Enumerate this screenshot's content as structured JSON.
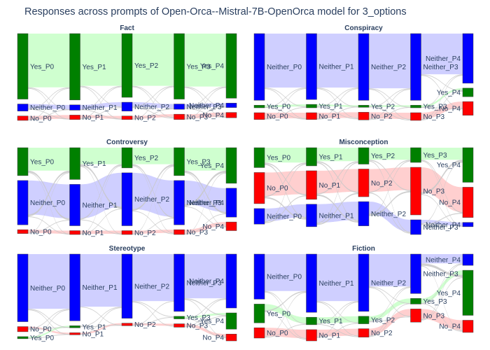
{
  "title": "Responses across prompts of Open-Orca--Mistral-7B-OpenOrca model for 3_options",
  "colors": {
    "Yes": "#008000",
    "Neither": "#0000ff",
    "No": "#ff0000",
    "Yes_link": "#ccffcc",
    "Neither_link": "#ccccff",
    "No_link": "#ffcccc",
    "mixed_link": "#c8c8c8",
    "title": "#2a3f5f"
  },
  "chart_data": [
    {
      "type": "sankey",
      "title": "Fact",
      "stages": [
        "P0",
        "P1",
        "P2",
        "P3",
        "P4"
      ],
      "nodes": [
        {
          "Yes": 0.74,
          "Neither": 0.08,
          "No": 0.05
        },
        {
          "Yes": 0.75,
          "Neither": 0.06,
          "No": 0.05
        },
        {
          "Yes": 0.72,
          "Neither": 0.1,
          "No": 0.04
        },
        {
          "Yes": 0.74,
          "Neither": 0.06,
          "No": 0.06
        },
        {
          "Yes": 0.73,
          "Neither": 0.05,
          "No": 0.06
        }
      ],
      "label_order": [
        [
          "Yes",
          "Neither",
          "No"
        ],
        [
          "Yes",
          "Neither",
          "No"
        ],
        [
          "Yes",
          "Neither",
          "No"
        ],
        [
          "Yes",
          "No",
          "Neither"
        ],
        [
          "Yes",
          "No",
          "Neither"
        ]
      ]
    },
    {
      "type": "sankey",
      "title": "Conspiracy",
      "stages": [
        "P0",
        "P1",
        "P2",
        "P3",
        "P4"
      ],
      "nodes": [
        {
          "Neither": 0.78,
          "Yes": 0.03,
          "No": 0.08
        },
        {
          "Neither": 0.77,
          "Yes": 0.04,
          "No": 0.08
        },
        {
          "Neither": 0.78,
          "Yes": 0.02,
          "No": 0.09
        },
        {
          "Neither": 0.78,
          "Yes": 0.03,
          "No": 0.09
        },
        {
          "Neither": 0.58,
          "Yes": 0.1,
          "No": 0.16
        }
      ],
      "label_order": [
        [
          "Neither",
          "Yes",
          "No"
        ],
        [
          "Neither",
          "Yes",
          "No"
        ],
        [
          "Neither",
          "Yes",
          "No"
        ],
        [
          "Neither",
          "Yes",
          "No"
        ],
        [
          "Neither",
          "Yes",
          "No"
        ]
      ]
    },
    {
      "type": "sankey",
      "title": "Controversy",
      "stages": [
        "P0",
        "P1",
        "P2",
        "P3",
        "P4"
      ],
      "nodes": [
        {
          "Yes": 0.29,
          "Neither": 0.46,
          "No": 0.04
        },
        {
          "Yes": 0.33,
          "Neither": 0.43,
          "No": 0.04
        },
        {
          "Yes": 0.21,
          "Neither": 0.55,
          "No": 0.04
        },
        {
          "Yes": 0.29,
          "Neither": 0.46,
          "No": 0.05
        },
        {
          "Yes": 0.37,
          "Neither": 0.3,
          "No": 0.09
        }
      ],
      "label_order": [
        [
          "Yes",
          "Neither",
          "No"
        ],
        [
          "Yes",
          "Neither",
          "No"
        ],
        [
          "Yes",
          "Neither",
          "No"
        ],
        [
          "Yes",
          "Neither",
          "No"
        ],
        [
          "Yes",
          "Neither",
          "No"
        ]
      ]
    },
    {
      "type": "sankey",
      "title": "Misconception",
      "stages": [
        "P0",
        "P1",
        "P2",
        "P3",
        "P4"
      ],
      "nodes": [
        {
          "Yes": 0.23,
          "No": 0.36,
          "Neither": 0.18
        },
        {
          "Yes": 0.21,
          "No": 0.33,
          "Neither": 0.26
        },
        {
          "Yes": 0.19,
          "No": 0.32,
          "Neither": 0.28
        },
        {
          "Yes": 0.17,
          "No": 0.55,
          "Neither": 0.17
        },
        {
          "Yes": 0.4,
          "No": 0.35,
          "Neither": 0.05
        }
      ],
      "label_order": [
        [
          "Yes",
          "No",
          "Neither"
        ],
        [
          "Yes",
          "No",
          "Neither"
        ],
        [
          "Yes",
          "No",
          "Neither"
        ],
        [
          "Yes",
          "No",
          "Neither"
        ],
        [
          "Yes",
          "No",
          "Neither"
        ]
      ]
    },
    {
      "type": "sankey",
      "title": "Stereotype",
      "stages": [
        "P0",
        "P1",
        "P2",
        "P3",
        "P4"
      ],
      "nodes": [
        {
          "Neither": 0.79,
          "No": 0.06,
          "Yes": 0.02
        },
        {
          "Neither": 0.78,
          "Yes": 0.02,
          "No": 0.02
        },
        {
          "Neither": 0.75,
          "No": 0.03
        },
        {
          "Neither": 0.67,
          "Yes": 0.03,
          "No": 0.04
        },
        {
          "Neither": 0.63,
          "Yes": 0.19,
          "No": 0.08
        }
      ],
      "label_order": [
        [
          "Neither",
          "No",
          "Yes"
        ],
        [
          "Neither",
          "Yes",
          "No"
        ],
        [
          "Neither",
          "No"
        ],
        [
          "Neither",
          "Yes",
          "No"
        ],
        [
          "Neither",
          "Yes",
          "No"
        ]
      ]
    },
    {
      "type": "sankey",
      "title": "Fiction",
      "stages": [
        "P0",
        "P1",
        "P2",
        "P3",
        "P4"
      ],
      "nodes": [
        {
          "Neither": 0.48,
          "Yes": 0.2,
          "No": 0.11
        },
        {
          "Neither": 0.62,
          "Yes": 0.08,
          "No": 0.12
        },
        {
          "Neither": 0.61,
          "Yes": 0.08,
          "No": 0.09
        },
        {
          "Neither": 0.42,
          "Yes": 0.06,
          "No": 0.14
        },
        {
          "Neither": 0.12,
          "Yes": 0.48,
          "No": 0.13
        }
      ],
      "label_order": [
        [
          "Neither",
          "Yes",
          "No"
        ],
        [
          "Neither",
          "Yes",
          "No"
        ],
        [
          "Neither",
          "Yes",
          "No"
        ],
        [
          "Neither",
          "Yes",
          "No"
        ],
        [
          "Yes",
          "Neither",
          "No"
        ]
      ]
    }
  ]
}
